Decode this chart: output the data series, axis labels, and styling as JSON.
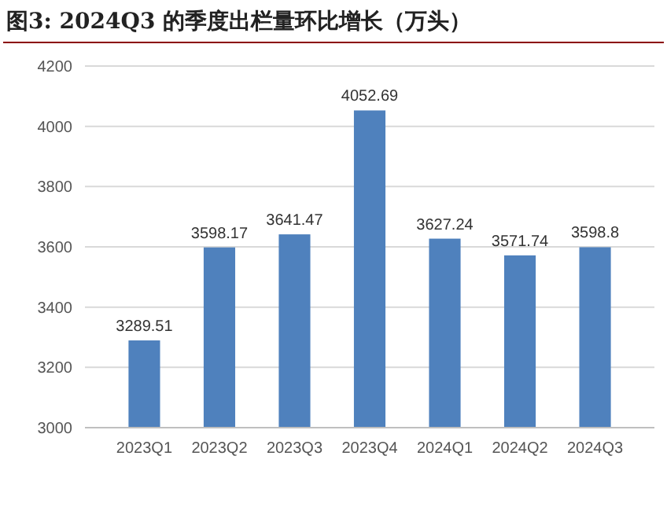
{
  "chart_data": {
    "type": "bar",
    "title": "图3:  2024Q3 的季度出栏量环比增长（万头）",
    "categories": [
      "2023Q1",
      "2023Q2",
      "2023Q3",
      "2023Q4",
      "2024Q1",
      "2024Q2",
      "2024Q3"
    ],
    "values": [
      3289.51,
      3598.17,
      3641.47,
      4052.69,
      3627.24,
      3571.74,
      3598.8
    ],
    "value_labels": [
      "3289.51",
      "3598.17",
      "3641.47",
      "4052.69",
      "3627.24",
      "3571.74",
      "3598.8"
    ],
    "color": "#4f81bd",
    "ylim": [
      3000,
      4200
    ],
    "yticks": [
      3000,
      3200,
      3400,
      3600,
      3800,
      4000,
      4200
    ],
    "grid": "y"
  }
}
